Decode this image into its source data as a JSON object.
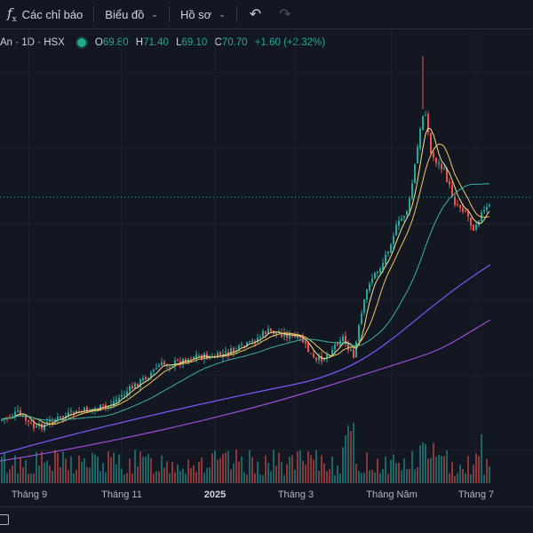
{
  "toolbar": {
    "indicators_label": "Các chỉ báo",
    "chart_label": "Biểu đồ",
    "profile_label": "Hồ sơ"
  },
  "legend": {
    "symbol": "An · 1D · HSX",
    "open_key": "O",
    "open": "69.80",
    "high_key": "H",
    "high": "71.40",
    "low_key": "L",
    "low": "69.10",
    "close_key": "C",
    "close": "70.70",
    "change": "+1.60 (+2.32%)"
  },
  "colors": {
    "up": "#26a69a",
    "down": "#ef5350",
    "ma_short": "#f0c75e",
    "ma_mid": "#fbe08a",
    "ma_long": "#3bb3a0",
    "ma_200": "#7e57ff",
    "ma_250": "#9c4dd6",
    "bg": "#131722"
  },
  "chart_data": {
    "type": "candlestick",
    "x_tick_labels": [
      "Tháng 9",
      "Tháng 11",
      "2025",
      "Tháng 3",
      "Tháng Năm",
      "Tháng 7"
    ],
    "last_close": 70.7,
    "grid": true,
    "legend": "top-left"
  },
  "icons": {
    "undo": "undo-icon",
    "redo": "redo-icon",
    "indicators": "function-icon",
    "calendar": "calendar-icon"
  }
}
